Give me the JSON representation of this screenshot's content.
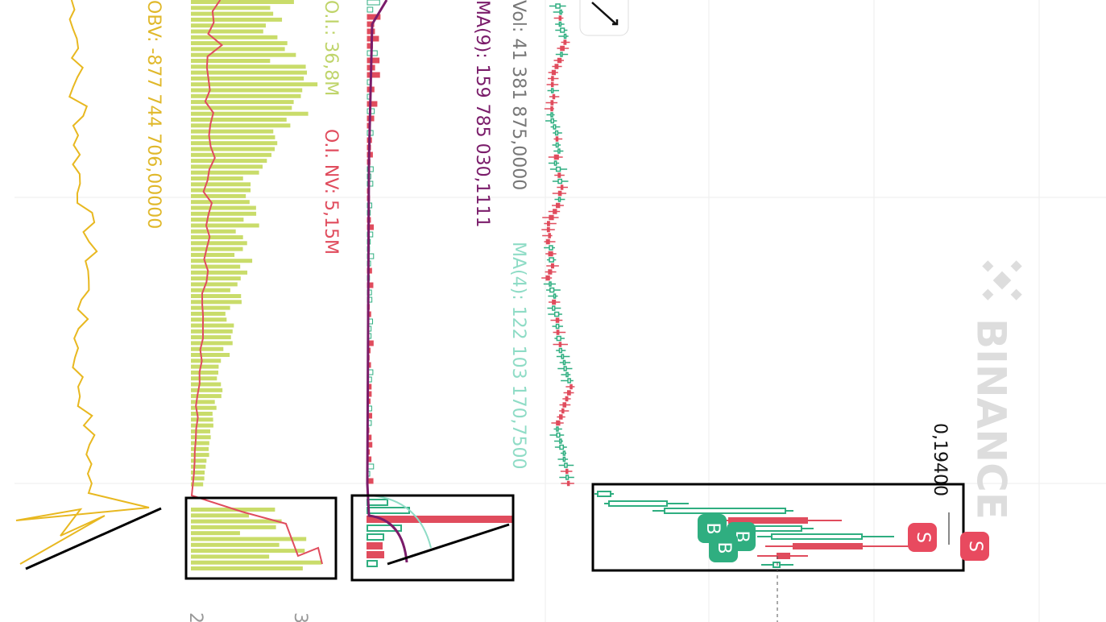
{
  "indicators": {
    "obv": "OBV: -877 744 706,00000",
    "oi": "O.I.: 36,8M",
    "oi_nv": "O.I. NV: 5,15M",
    "ma9": "MA(9): 159 785 030,1111",
    "vol": "Vol: 41 381 875,0000",
    "ma4": "MA(4): 122 103 170,7500"
  },
  "price_label": "0,19400",
  "markers": {
    "sell": [
      "S",
      "S"
    ],
    "buy": [
      "B",
      "B",
      "B"
    ]
  },
  "watermark": "BINANCE",
  "axis_labels": [
    "2",
    "3"
  ]
}
